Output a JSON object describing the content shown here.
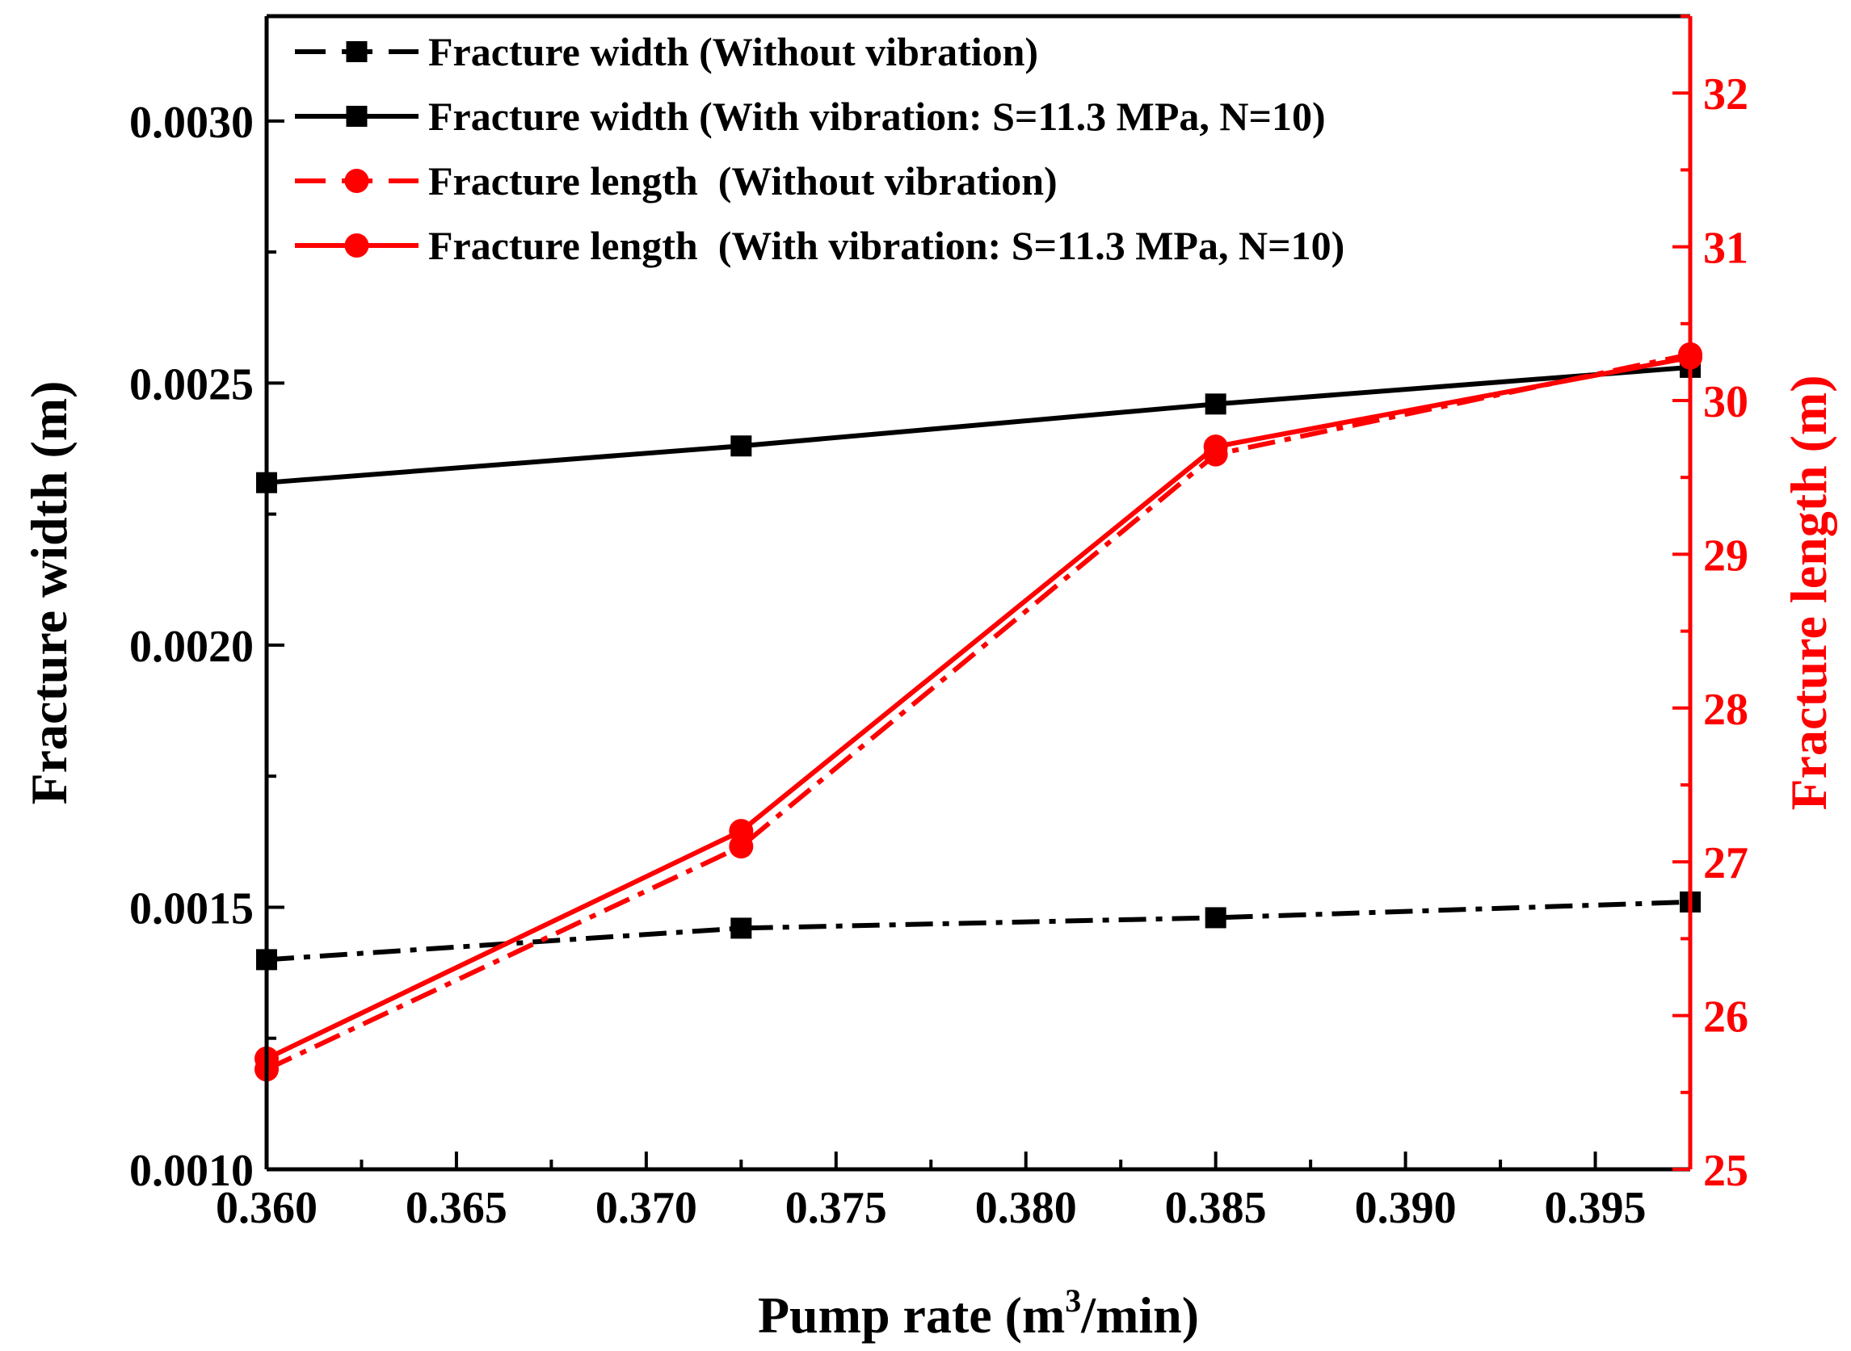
{
  "chart_data": {
    "type": "line",
    "xlabel": "Pump rate (m",
    "xlabel_sup": "3",
    "xlabel_tail": "/min)",
    "ylabel_left": "Fracture width (m)",
    "ylabel_right": "Fracture length (m)",
    "xlim": [
      0.36,
      0.3975
    ],
    "ylim_left": [
      0.001,
      0.0032
    ],
    "ylim_right": [
      25,
      32.5
    ],
    "x_ticks": [
      0.36,
      0.365,
      0.37,
      0.375,
      0.38,
      0.385,
      0.39,
      0.395
    ],
    "x_tick_labels": [
      "0.360",
      "0.365",
      "0.370",
      "0.375",
      "0.380",
      "0.385",
      "0.390",
      "0.395"
    ],
    "y_left_ticks": [
      0.001,
      0.0015,
      0.002,
      0.0025,
      0.003
    ],
    "y_left_tick_labels": [
      "0.0010",
      "0.0015",
      "0.0020",
      "0.0025",
      "0.0030"
    ],
    "y_right_ticks": [
      25,
      26,
      27,
      28,
      29,
      30,
      31,
      32
    ],
    "y_right_tick_labels": [
      "25",
      "26",
      "27",
      "28",
      "29",
      "30",
      "31",
      "32"
    ],
    "x": [
      0.36,
      0.3725,
      0.385,
      0.3975
    ],
    "series": [
      {
        "name": "Fracture width (Without vibration)",
        "axis": "left",
        "color": "#000000",
        "style": "dashdot",
        "marker": "square",
        "values": [
          0.0014,
          0.00146,
          0.00148,
          0.00151
        ]
      },
      {
        "name": "Fracture width (With vibration: S=11.3 MPa, N=10)",
        "axis": "left",
        "color": "#000000",
        "style": "solid",
        "marker": "square",
        "values": [
          0.00231,
          0.00238,
          0.00246,
          0.00253
        ]
      },
      {
        "name": "Fracture length  (Without vibration)",
        "axis": "right",
        "color": "#ff0000",
        "style": "dashdot",
        "marker": "circle",
        "values": [
          25.65,
          27.1,
          29.65,
          30.3
        ]
      },
      {
        "name": "Fracture length  (With vibration: S=11.3 MPa, N=10)",
        "axis": "right",
        "color": "#ff0000",
        "style": "solid",
        "marker": "circle",
        "values": [
          25.72,
          27.2,
          29.7,
          30.28
        ]
      }
    ],
    "legend": "top-left",
    "grid": false
  }
}
